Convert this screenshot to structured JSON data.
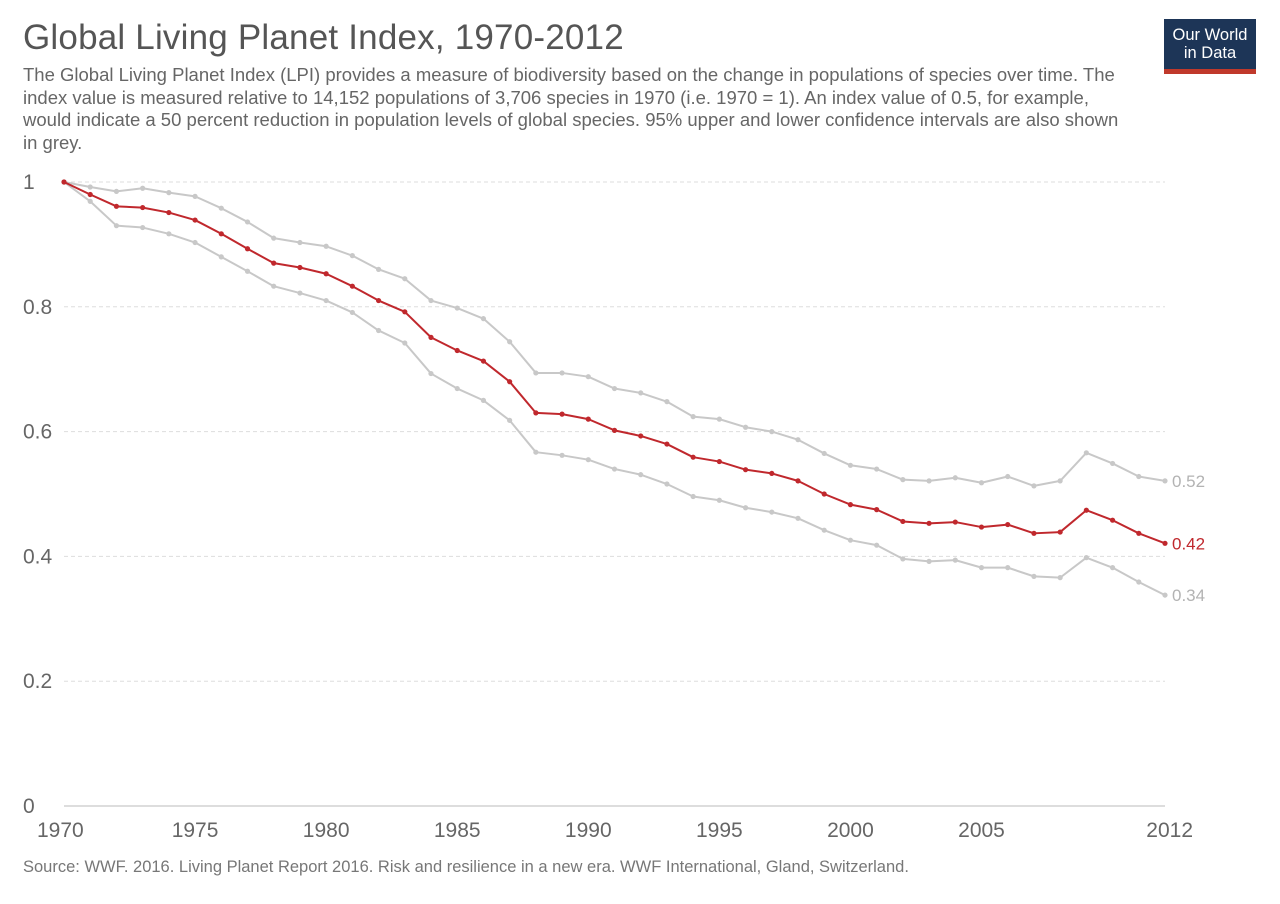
{
  "header": {
    "title": "Global Living Planet Index, 1970-2012",
    "subtitle": "The Global Living Planet Index (LPI) provides a measure of biodiversity based on the change in populations of species over time. The index value is measured relative to 14,152 populations of 3,706 species in 1970 (i.e. 1970 = 1). An index value of 0.5, for example, would indicate a 50 percent reduction in population levels of global species. 95% upper and lower confidence intervals are also shown in grey."
  },
  "logo": {
    "line1": "Our World",
    "line2": "in Data"
  },
  "footer": {
    "source": "Source: WWF. 2016. Living Planet Report 2016. Risk and resilience in a new era. WWF International, Gland, Switzerland."
  },
  "chart_data": {
    "type": "line",
    "title": "Global Living Planet Index, 1970-2012",
    "xlabel": "",
    "ylabel": "",
    "xlim": [
      1970,
      2012
    ],
    "ylim": [
      0,
      1
    ],
    "grid": true,
    "x_ticks": [
      "1970",
      "1975",
      "1980",
      "1985",
      "1990",
      "1995",
      "2000",
      "2005",
      "2012"
    ],
    "y_ticks": [
      "0",
      "0.2",
      "0.4",
      "0.6",
      "0.8",
      "1"
    ],
    "x": [
      1970,
      1971,
      1972,
      1973,
      1974,
      1975,
      1976,
      1977,
      1978,
      1979,
      1980,
      1981,
      1982,
      1983,
      1984,
      1985,
      1986,
      1987,
      1988,
      1989,
      1990,
      1991,
      1992,
      1993,
      1994,
      1995,
      1996,
      1997,
      1998,
      1999,
      2000,
      2001,
      2002,
      2003,
      2004,
      2005,
      2006,
      2007,
      2008,
      2009,
      2010,
      2011,
      2012
    ],
    "series": [
      {
        "role": "upper",
        "color": "#c8c8c8",
        "end_label": "0.52",
        "values": [
          1.0,
          0.992,
          0.985,
          0.99,
          0.983,
          0.977,
          0.958,
          0.936,
          0.91,
          0.903,
          0.897,
          0.882,
          0.86,
          0.845,
          0.81,
          0.798,
          0.781,
          0.744,
          0.694,
          0.694,
          0.688,
          0.669,
          0.662,
          0.648,
          0.624,
          0.62,
          0.607,
          0.6,
          0.587,
          0.565,
          0.546,
          0.54,
          0.523,
          0.521,
          0.526,
          0.518,
          0.528,
          0.513,
          0.521,
          0.566,
          0.549,
          0.528,
          0.521
        ]
      },
      {
        "role": "index",
        "color": "#c0282d",
        "end_label": "0.42",
        "values": [
          1.0,
          0.98,
          0.961,
          0.959,
          0.951,
          0.939,
          0.917,
          0.893,
          0.87,
          0.863,
          0.853,
          0.833,
          0.81,
          0.792,
          0.751,
          0.73,
          0.713,
          0.68,
          0.63,
          0.628,
          0.62,
          0.602,
          0.593,
          0.58,
          0.559,
          0.552,
          0.539,
          0.533,
          0.521,
          0.5,
          0.483,
          0.475,
          0.456,
          0.453,
          0.455,
          0.447,
          0.451,
          0.437,
          0.439,
          0.474,
          0.458,
          0.437,
          0.421
        ]
      },
      {
        "role": "lower",
        "color": "#c8c8c8",
        "end_label": "0.34",
        "values": [
          1.0,
          0.969,
          0.93,
          0.927,
          0.917,
          0.903,
          0.88,
          0.857,
          0.833,
          0.822,
          0.81,
          0.791,
          0.762,
          0.742,
          0.693,
          0.669,
          0.65,
          0.618,
          0.567,
          0.562,
          0.555,
          0.54,
          0.531,
          0.516,
          0.496,
          0.49,
          0.478,
          0.471,
          0.461,
          0.442,
          0.426,
          0.418,
          0.396,
          0.392,
          0.394,
          0.382,
          0.382,
          0.368,
          0.366,
          0.398,
          0.382,
          0.359,
          0.338
        ]
      }
    ]
  }
}
